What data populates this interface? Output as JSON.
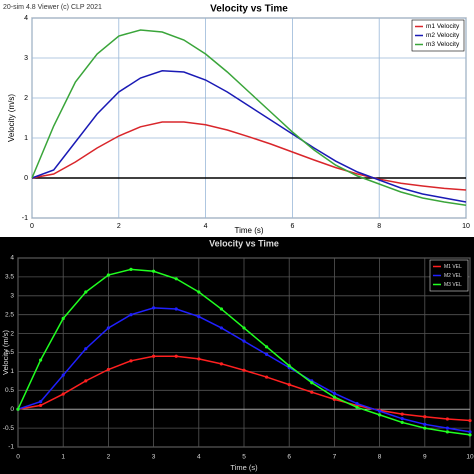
{
  "viewer_label": "20-sim 4.8 Viewer (c) CLP 2021",
  "chart_data": [
    {
      "type": "line",
      "title": "Velocity vs Time",
      "x_label": "Time (s)",
      "y_label": "Velocity (m/s)",
      "x": [
        0,
        0.5,
        1,
        1.5,
        2,
        2.5,
        3,
        3.5,
        4,
        4.5,
        5,
        5.5,
        6,
        6.5,
        7,
        7.5,
        8,
        8.5,
        9,
        9.5,
        10
      ],
      "series": [
        {
          "name": "m1 Velocity",
          "color": "#d9262b",
          "values": [
            0,
            0.1,
            0.4,
            0.75,
            1.05,
            1.28,
            1.4,
            1.4,
            1.33,
            1.2,
            1.03,
            0.85,
            0.65,
            0.45,
            0.26,
            0.1,
            -0.03,
            -0.13,
            -0.2,
            -0.26,
            -0.3
          ]
        },
        {
          "name": "m2 Velocity",
          "color": "#1a1ab5",
          "values": [
            0,
            0.2,
            0.9,
            1.6,
            2.15,
            2.5,
            2.68,
            2.65,
            2.45,
            2.15,
            1.8,
            1.45,
            1.1,
            0.75,
            0.42,
            0.15,
            -0.05,
            -0.25,
            -0.4,
            -0.5,
            -0.6
          ]
        },
        {
          "name": "m3 Velocity",
          "color": "#3aa53a",
          "values": [
            0,
            1.3,
            2.4,
            3.1,
            3.55,
            3.7,
            3.65,
            3.45,
            3.1,
            2.65,
            2.15,
            1.65,
            1.15,
            0.7,
            0.32,
            0.05,
            -0.15,
            -0.35,
            -0.5,
            -0.6,
            -0.68
          ]
        }
      ],
      "xlim": [
        0,
        10
      ],
      "xticks": [
        0,
        2,
        4,
        6,
        8,
        10
      ],
      "ylim": [
        -1,
        4
      ],
      "yticks": [
        -1,
        0,
        1,
        2,
        3,
        4
      ],
      "grid": true,
      "legend": "top-right",
      "background": "#ffffff",
      "markers": false
    },
    {
      "type": "line",
      "title": "Velocity vs Time",
      "x_label": "Time (s)",
      "y_label": "Velocity (m/s)",
      "x": [
        0,
        0.5,
        1,
        1.5,
        2,
        2.5,
        3,
        3.5,
        4,
        4.5,
        5,
        5.5,
        6,
        6.5,
        7,
        7.5,
        8,
        8.5,
        9,
        9.5,
        10
      ],
      "series": [
        {
          "name": "M1 VEL",
          "color": "#ff2020",
          "values": [
            0,
            0.1,
            0.4,
            0.75,
            1.05,
            1.28,
            1.4,
            1.4,
            1.33,
            1.2,
            1.03,
            0.85,
            0.65,
            0.45,
            0.26,
            0.1,
            -0.03,
            -0.13,
            -0.2,
            -0.26,
            -0.3
          ]
        },
        {
          "name": "M2 VEL",
          "color": "#2020ff",
          "values": [
            0,
            0.2,
            0.9,
            1.6,
            2.15,
            2.5,
            2.68,
            2.65,
            2.45,
            2.15,
            1.8,
            1.45,
            1.1,
            0.75,
            0.42,
            0.15,
            -0.05,
            -0.25,
            -0.4,
            -0.5,
            -0.6
          ]
        },
        {
          "name": "M3 VEL",
          "color": "#20ff20",
          "values": [
            0,
            1.3,
            2.4,
            3.1,
            3.55,
            3.7,
            3.65,
            3.45,
            3.1,
            2.65,
            2.15,
            1.65,
            1.15,
            0.7,
            0.32,
            0.05,
            -0.15,
            -0.35,
            -0.5,
            -0.6,
            -0.68
          ]
        }
      ],
      "xlim": [
        0,
        10
      ],
      "xticks": [
        0,
        1,
        2,
        3,
        4,
        5,
        6,
        7,
        8,
        9,
        10
      ],
      "ylim": [
        -1,
        4
      ],
      "yticks": [
        -1,
        -0.5,
        0,
        0.5,
        1,
        1.5,
        2,
        2.5,
        3,
        3.5,
        4
      ],
      "grid": true,
      "legend": "top-right",
      "background": "#000000",
      "markers": true
    }
  ]
}
